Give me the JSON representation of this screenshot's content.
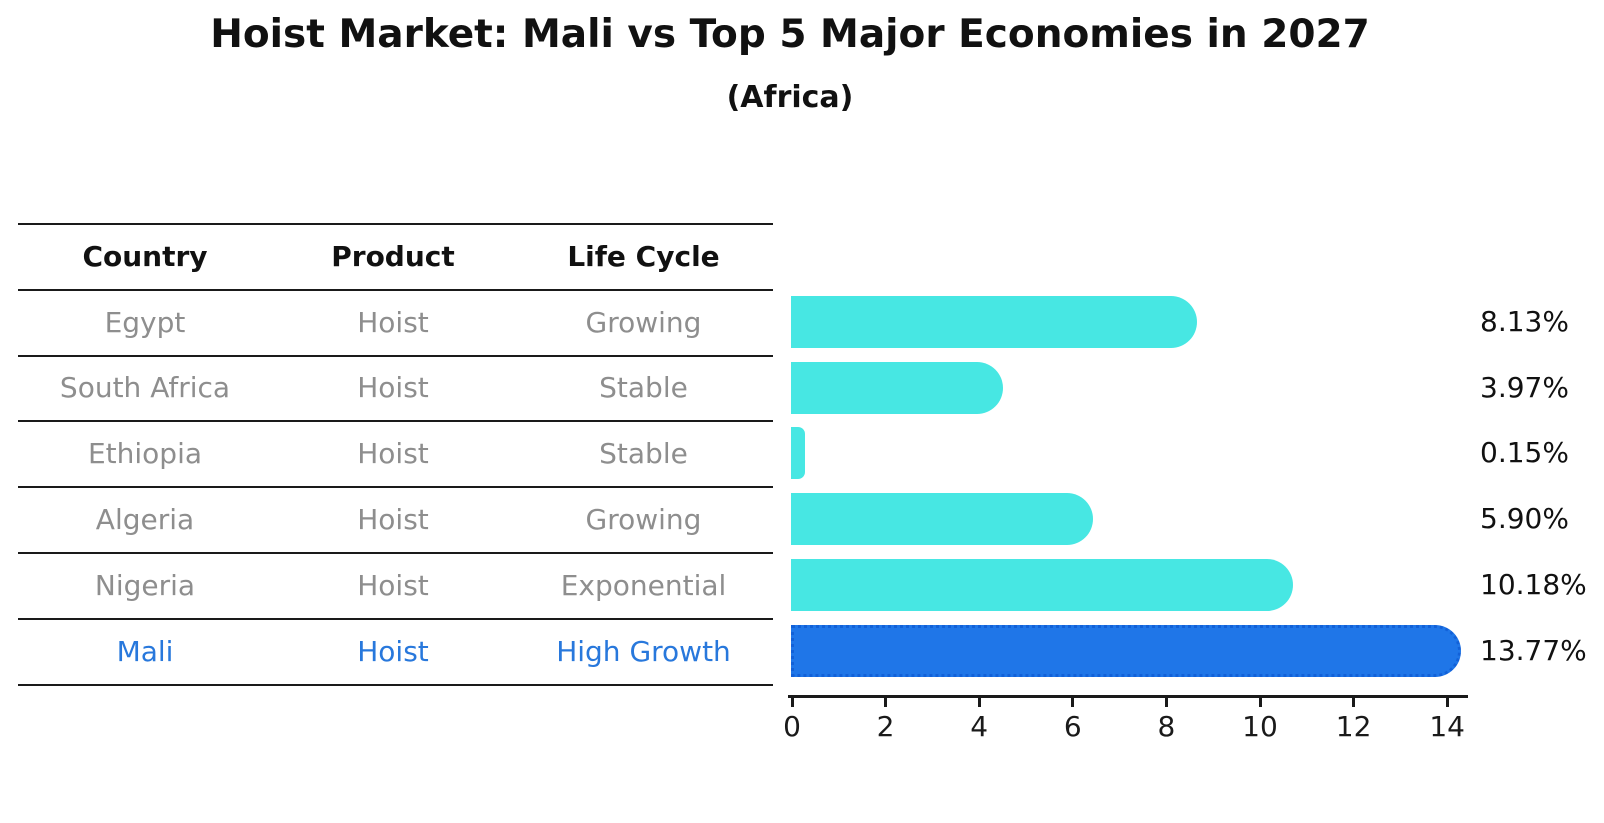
{
  "title": "Hoist Market: Mali vs Top 5 Major Economies in 2027",
  "subtitle": "(Africa)",
  "table": {
    "headers": [
      "Country",
      "Product",
      "Life Cycle"
    ],
    "rows": [
      {
        "country": "Egypt",
        "product": "Hoist",
        "life_cycle": "Growing",
        "highlight": false
      },
      {
        "country": "South Africa",
        "product": "Hoist",
        "life_cycle": "Stable",
        "highlight": false
      },
      {
        "country": "Ethiopia",
        "product": "Hoist",
        "life_cycle": "Stable",
        "highlight": false
      },
      {
        "country": "Algeria",
        "product": "Hoist",
        "life_cycle": "Growing",
        "highlight": false
      },
      {
        "country": "Nigeria",
        "product": "Hoist",
        "life_cycle": "Exponential",
        "highlight": false
      },
      {
        "country": "Mali",
        "product": "Hoist",
        "life_cycle": "High Growth",
        "highlight": true
      }
    ]
  },
  "chart_data": {
    "type": "bar",
    "orientation": "horizontal",
    "title": "Hoist Market: Mali vs Top 5 Major Economies in 2027",
    "subtitle": "(Africa)",
    "categories": [
      "Egypt",
      "South Africa",
      "Ethiopia",
      "Algeria",
      "Nigeria",
      "Mali"
    ],
    "values": [
      8.13,
      3.97,
      0.15,
      5.9,
      10.18,
      13.77
    ],
    "value_labels": [
      "8.13%",
      "3.97%",
      "0.15%",
      "5.90%",
      "10.18%",
      "13.77%"
    ],
    "highlight_index": 5,
    "xlabel": "",
    "ylabel": "",
    "xlim": [
      0,
      14
    ],
    "x_ticks": [
      "0",
      "2",
      "4",
      "6",
      "8",
      "10",
      "12",
      "14"
    ],
    "grid": false,
    "legend": false
  },
  "colors": {
    "bar": "#47e7e3",
    "highlight_bar": "#1f76e8",
    "highlight_border": "#1261d8",
    "row_text": "#8e8e8e",
    "header_text": "#111111",
    "highlight_text": "#2878dc",
    "axis": "#1a1a1a",
    "background": "#ffffff"
  }
}
